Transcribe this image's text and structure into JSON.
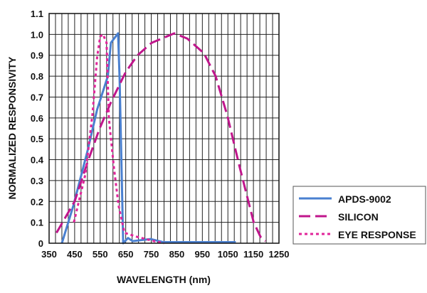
{
  "chart_data": {
    "type": "line",
    "title": "",
    "xlabel": "WAVELENGTH (nm)",
    "ylabel": "NORMALIZED RESPONSIVITY",
    "xlim": [
      350,
      1250
    ],
    "ylim": [
      0,
      1.1
    ],
    "xticks": [
      350,
      450,
      550,
      650,
      750,
      850,
      950,
      1050,
      1150,
      1250
    ],
    "yticks": [
      0,
      0.1,
      0.2,
      0.3,
      0.4,
      0.5,
      0.6,
      0.7,
      0.8,
      0.9,
      1.0,
      1.1
    ],
    "ytick_labels": [
      "0",
      "0.1",
      "0.2",
      "0.3",
      "0.4",
      "0.5",
      "0.6",
      "0.7",
      "0.8",
      "0.9",
      "1.0",
      "1.1"
    ],
    "grid": true,
    "grid_x_step": 25,
    "legend_placement": "bottom-right outside",
    "series": [
      {
        "name": "APDS-9002",
        "color": "#4a80d0",
        "style": "solid",
        "x": [
          400,
          445,
          500,
          538,
          580,
          592,
          620,
          626,
          640,
          659,
          677,
          747,
          798,
          1081
        ],
        "y": [
          0,
          0.18,
          0.44,
          0.64,
          0.8,
          0.96,
          1.005,
          0.79,
          0,
          0.025,
          0.01,
          0.02,
          0.005,
          0.005
        ]
      },
      {
        "name": "SILICON",
        "color": "#c0168c",
        "style": "dashed",
        "x": [
          379,
          450,
          501,
          548,
          594,
          650,
          696,
          752,
          840,
          891,
          956,
          1002,
          1048,
          1095,
          1151,
          1178,
          1197
        ],
        "y": [
          0.05,
          0.2,
          0.39,
          0.55,
          0.68,
          0.82,
          0.9,
          0.96,
          1.005,
          0.98,
          0.91,
          0.8,
          0.61,
          0.37,
          0.1,
          0.03,
          0.01
        ]
      },
      {
        "name": "EYE RESPONSE",
        "color": "#e0259a",
        "style": "dotted",
        "x": [
          447,
          492,
          520,
          538,
          550,
          561,
          575,
          584,
          603,
          622,
          645,
          696,
          761,
          800
        ],
        "y": [
          0.1,
          0.33,
          0.62,
          0.89,
          0.99,
          1.0,
          0.96,
          0.6,
          0.37,
          0.18,
          0.05,
          0.03,
          0.01,
          0
        ]
      }
    ]
  }
}
